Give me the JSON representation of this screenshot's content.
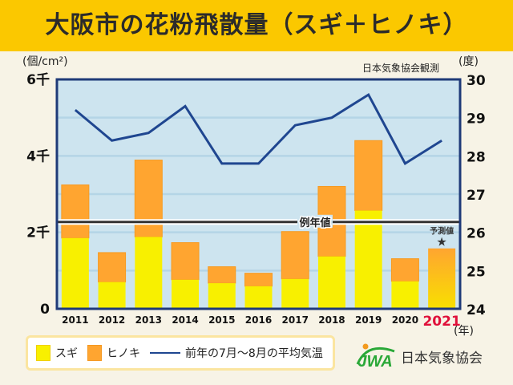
{
  "title": "大阪市の花粉飛散量（スギ＋ヒノキ）",
  "units": {
    "left": "(個/cm²)",
    "right": "(度)",
    "x": "(年)"
  },
  "source_note": "日本気象協会観測",
  "organization": "日本気象協会",
  "logo_text": "JWA",
  "legend": {
    "sugi": "スギ",
    "hinoki": "ヒノキ",
    "temp": "前年の7月〜8月の平均気温"
  },
  "colors": {
    "sugi": "#f8f000",
    "hinoki": "#ffa530",
    "temp_line": "#1f4690",
    "plot_bg": "#cde4ef",
    "axis": "#1f3a78",
    "highlight_year": "#e0103a",
    "header": "#fbc800"
  },
  "chart_data": {
    "type": "bar",
    "stacked": true,
    "title": "大阪市の花粉飛散量（スギ＋ヒノキ）",
    "xlabel": "(年)",
    "ylabel": "(個/cm²)",
    "y2label": "(度)",
    "categories": [
      "2011",
      "2012",
      "2013",
      "2014",
      "2015",
      "2016",
      "2017",
      "2018",
      "2019",
      "2020",
      "2021"
    ],
    "highlight_category": "2021",
    "ylim": [
      0,
      6000
    ],
    "y_ticks": [
      {
        "value": 0,
        "label": "0"
      },
      {
        "value": 2000,
        "label": "2千"
      },
      {
        "value": 4000,
        "label": "4千"
      },
      {
        "value": 6000,
        "label": "6千"
      }
    ],
    "y_grid_step": 1000,
    "y2lim": [
      24,
      30
    ],
    "y2_ticks": [
      24,
      25,
      26,
      27,
      28,
      29,
      30
    ],
    "grid": true,
    "legend_position": "bottom-left",
    "series": [
      {
        "name": "スギ",
        "type": "bar",
        "values": [
          1850,
          700,
          1880,
          760,
          670,
          590,
          780,
          1370,
          2570,
          720,
          null
        ]
      },
      {
        "name": "ヒノキ",
        "type": "bar",
        "values": [
          1390,
          770,
          2010,
          970,
          430,
          340,
          1240,
          1830,
          1830,
          590,
          null
        ]
      },
      {
        "name": "前年の7月〜8月の平均気温",
        "type": "line",
        "axis": "right",
        "values": [
          29.2,
          28.4,
          28.6,
          29.3,
          27.8,
          27.8,
          28.8,
          29.0,
          29.6,
          27.8,
          28.4
        ]
      }
    ],
    "forecast": {
      "category": "2021",
      "total": 1580,
      "label": "予測値",
      "marker": "★"
    },
    "normal_line": {
      "value": 2270,
      "label": "例年値"
    }
  }
}
